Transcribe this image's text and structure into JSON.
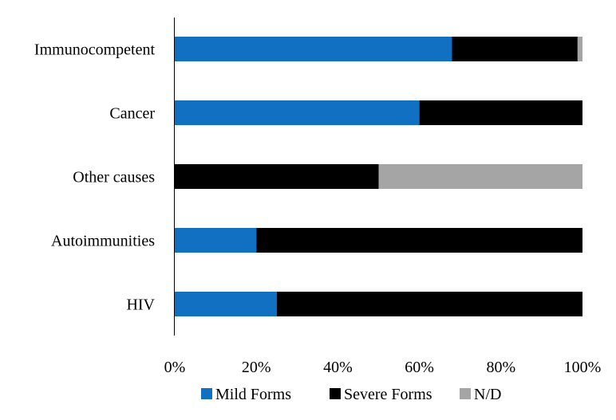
{
  "chart_data": {
    "type": "bar",
    "orientation": "horizontal",
    "stacked": true,
    "percent": true,
    "categories": [
      "Immunocompetent",
      "Cancer",
      "Other causes",
      "Autoimmunities",
      "HIV"
    ],
    "series": [
      {
        "name": "Mild Forms",
        "color": "#1170c1",
        "values": [
          68,
          60,
          0,
          20,
          25
        ]
      },
      {
        "name": "Severe Forms",
        "color": "#000000",
        "values": [
          30.8,
          40,
          50,
          80,
          75
        ]
      },
      {
        "name": "N/D",
        "color": "#a5a5a5",
        "values": [
          1.2,
          0,
          50,
          0,
          0
        ]
      }
    ],
    "xlim": [
      0,
      100
    ],
    "x_ticks": [
      "0%",
      "20%",
      "40%",
      "60%",
      "80%",
      "100%"
    ],
    "legend_position": "bottom",
    "grid": false
  }
}
